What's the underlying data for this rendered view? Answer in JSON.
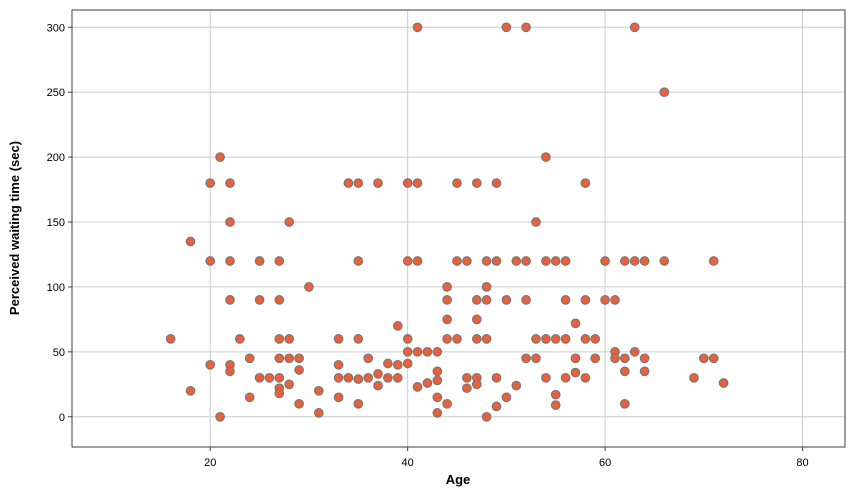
{
  "chart_data": {
    "type": "scatter",
    "title": "",
    "xlabel": "Age",
    "ylabel": "Perceived waiting time (sec)",
    "x_ticks": [
      20,
      40,
      60,
      80
    ],
    "y_ticks": [
      0,
      50,
      100,
      150,
      200,
      250,
      300
    ],
    "xlim": [
      6.0,
      84.3
    ],
    "ylim": [
      -23.3,
      313.3
    ],
    "grid": true,
    "legend": "none",
    "marker_color": "#e8613c",
    "marker_edge_color": "#757575",
    "grid_color": "#cccccc",
    "frame_color": "#3f3f3f",
    "points": [
      [
        41,
        300
      ],
      [
        50,
        300
      ],
      [
        52,
        300
      ],
      [
        63,
        300
      ],
      [
        66,
        250
      ],
      [
        21,
        200
      ],
      [
        54,
        200
      ],
      [
        20,
        180
      ],
      [
        22,
        180
      ],
      [
        34,
        180
      ],
      [
        35,
        180
      ],
      [
        37,
        180
      ],
      [
        40,
        180
      ],
      [
        41,
        180
      ],
      [
        45,
        180
      ],
      [
        47,
        180
      ],
      [
        49,
        180
      ],
      [
        58,
        180
      ],
      [
        22,
        150
      ],
      [
        28,
        150
      ],
      [
        53,
        150
      ],
      [
        18,
        135
      ],
      [
        20,
        120
      ],
      [
        22,
        120
      ],
      [
        25,
        120
      ],
      [
        27,
        120
      ],
      [
        35,
        120
      ],
      [
        40,
        120
      ],
      [
        41,
        120
      ],
      [
        45,
        120
      ],
      [
        46,
        120
      ],
      [
        48,
        120
      ],
      [
        49,
        120
      ],
      [
        51,
        120
      ],
      [
        52,
        120
      ],
      [
        54,
        120
      ],
      [
        55,
        120
      ],
      [
        56,
        120
      ],
      [
        60,
        120
      ],
      [
        62,
        120
      ],
      [
        63,
        120
      ],
      [
        64,
        120
      ],
      [
        66,
        120
      ],
      [
        71,
        120
      ],
      [
        30,
        100
      ],
      [
        44,
        100
      ],
      [
        48,
        100
      ],
      [
        22,
        90
      ],
      [
        25,
        90
      ],
      [
        27,
        90
      ],
      [
        44,
        90
      ],
      [
        47,
        90
      ],
      [
        48,
        90
      ],
      [
        50,
        90
      ],
      [
        52,
        90
      ],
      [
        56,
        90
      ],
      [
        58,
        90
      ],
      [
        60,
        90
      ],
      [
        61,
        90
      ],
      [
        44,
        75
      ],
      [
        47,
        75
      ],
      [
        57,
        72
      ],
      [
        39,
        70
      ],
      [
        16,
        60
      ],
      [
        23,
        60
      ],
      [
        27,
        60
      ],
      [
        28,
        60
      ],
      [
        33,
        60
      ],
      [
        35,
        60
      ],
      [
        40,
        60
      ],
      [
        44,
        60
      ],
      [
        45,
        60
      ],
      [
        47,
        60
      ],
      [
        48,
        60
      ],
      [
        53,
        60
      ],
      [
        54,
        60
      ],
      [
        55,
        60
      ],
      [
        56,
        60
      ],
      [
        58,
        60
      ],
      [
        59,
        60
      ],
      [
        40,
        50
      ],
      [
        41,
        50
      ],
      [
        42,
        50
      ],
      [
        43,
        50
      ],
      [
        61,
        50
      ],
      [
        63,
        50
      ],
      [
        24,
        45
      ],
      [
        27,
        45
      ],
      [
        28,
        45
      ],
      [
        29,
        45
      ],
      [
        36,
        45
      ],
      [
        52,
        45
      ],
      [
        53,
        45
      ],
      [
        57,
        45
      ],
      [
        59,
        45
      ],
      [
        61,
        45
      ],
      [
        62,
        45
      ],
      [
        64,
        45
      ],
      [
        70,
        45
      ],
      [
        71,
        45
      ],
      [
        20,
        40
      ],
      [
        22,
        40
      ],
      [
        33,
        40
      ],
      [
        38,
        41
      ],
      [
        39,
        40
      ],
      [
        40,
        41
      ],
      [
        22,
        35
      ],
      [
        29,
        36
      ],
      [
        43,
        35
      ],
      [
        57,
        34
      ],
      [
        62,
        35
      ],
      [
        64,
        35
      ],
      [
        25,
        30
      ],
      [
        26,
        30
      ],
      [
        27,
        30
      ],
      [
        33,
        30
      ],
      [
        34,
        30
      ],
      [
        35,
        29
      ],
      [
        36,
        30
      ],
      [
        37,
        33
      ],
      [
        38,
        30
      ],
      [
        39,
        30
      ],
      [
        43,
        28
      ],
      [
        46,
        30
      ],
      [
        47,
        30
      ],
      [
        49,
        30
      ],
      [
        54,
        30
      ],
      [
        56,
        30
      ],
      [
        58,
        30
      ],
      [
        69,
        30
      ],
      [
        42,
        26
      ],
      [
        72,
        26
      ],
      [
        28,
        25
      ],
      [
        47,
        25
      ],
      [
        37,
        24
      ],
      [
        51,
        24
      ],
      [
        41,
        23
      ],
      [
        46,
        22
      ],
      [
        27,
        22
      ],
      [
        18,
        20
      ],
      [
        31,
        20
      ],
      [
        27,
        18
      ],
      [
        55,
        17
      ],
      [
        24,
        15
      ],
      [
        33,
        15
      ],
      [
        43,
        15
      ],
      [
        50,
        15
      ],
      [
        29,
        10
      ],
      [
        35,
        10
      ],
      [
        44,
        10
      ],
      [
        62,
        10
      ],
      [
        55,
        9
      ],
      [
        49,
        8
      ],
      [
        31,
        3
      ],
      [
        43,
        3
      ],
      [
        21,
        0
      ],
      [
        48,
        0
      ]
    ]
  }
}
